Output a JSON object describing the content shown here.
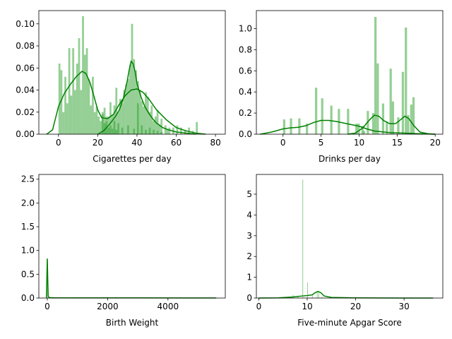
{
  "chart_data": [
    {
      "type": "histogram+kde",
      "xlabel": "Cigarettes per day",
      "xlim": [
        -10,
        85
      ],
      "ylim": [
        0,
        0.112
      ],
      "xticks": [
        0,
        20,
        40,
        60,
        80
      ],
      "yticks": [
        0.0,
        0.02,
        0.04,
        0.06,
        0.08,
        0.1
      ],
      "ytick_labels": [
        "0.00",
        "0.02",
        "0.04",
        "0.06",
        "0.08",
        "0.10"
      ],
      "bar_color": "#2ca02c",
      "line_color": "#008000",
      "series": [
        {
          "bins": [
            {
              "x": 0,
              "w": 1,
              "v": 0.064
            },
            {
              "x": 1,
              "w": 1,
              "v": 0.058
            },
            {
              "x": 2,
              "w": 1,
              "v": 0.02
            },
            {
              "x": 3,
              "w": 1,
              "v": 0.052
            },
            {
              "x": 4,
              "w": 1,
              "v": 0.028
            },
            {
              "x": 5,
              "w": 1,
              "v": 0.078
            },
            {
              "x": 6,
              "w": 1,
              "v": 0.035
            },
            {
              "x": 7,
              "w": 1,
              "v": 0.078
            },
            {
              "x": 8,
              "w": 1,
              "v": 0.04
            },
            {
              "x": 9,
              "w": 1,
              "v": 0.064
            },
            {
              "x": 10,
              "w": 1,
              "v": 0.087
            },
            {
              "x": 11,
              "w": 1,
              "v": 0.04
            },
            {
              "x": 12,
              "w": 1,
              "v": 0.107
            },
            {
              "x": 13,
              "w": 1,
              "v": 0.072
            },
            {
              "x": 14,
              "w": 1,
              "v": 0.078
            },
            {
              "x": 15,
              "w": 1,
              "v": 0.05
            },
            {
              "x": 16,
              "w": 1,
              "v": 0.026
            },
            {
              "x": 17,
              "w": 1,
              "v": 0.052
            },
            {
              "x": 18,
              "w": 1,
              "v": 0.02
            },
            {
              "x": 19,
              "w": 1,
              "v": 0.025
            },
            {
              "x": 20,
              "w": 1,
              "v": 0.016
            },
            {
              "x": 21,
              "w": 1,
              "v": 0.012
            },
            {
              "x": 22,
              "w": 1,
              "v": 0.018
            },
            {
              "x": 23,
              "w": 1,
              "v": 0.01
            },
            {
              "x": 24,
              "w": 1,
              "v": 0.016
            },
            {
              "x": 25,
              "w": 1,
              "v": 0.006
            },
            {
              "x": 26,
              "w": 1,
              "v": 0.008
            },
            {
              "x": 27,
              "w": 1,
              "v": 0.005
            },
            {
              "x": 28,
              "w": 1,
              "v": 0.012
            },
            {
              "x": 29,
              "w": 1,
              "v": 0.004
            },
            {
              "x": 30,
              "w": 1,
              "v": 0.01
            },
            {
              "x": 32,
              "w": 1,
              "v": 0.006
            },
            {
              "x": 35,
              "w": 1,
              "v": 0.008
            },
            {
              "x": 38,
              "w": 1,
              "v": 0.005
            },
            {
              "x": 40,
              "w": 1,
              "v": 0.028
            },
            {
              "x": 42,
              "w": 1,
              "v": 0.008
            },
            {
              "x": 44,
              "w": 1,
              "v": 0.004
            },
            {
              "x": 46,
              "w": 1,
              "v": 0.006
            },
            {
              "x": 48,
              "w": 1,
              "v": 0.004
            },
            {
              "x": 50,
              "w": 1,
              "v": 0.003
            },
            {
              "x": 52,
              "w": 1,
              "v": 0.002
            },
            {
              "x": 55,
              "w": 1,
              "v": 0.004
            },
            {
              "x": 58,
              "w": 1,
              "v": 0.006
            },
            {
              "x": 60,
              "w": 1,
              "v": 0.008
            },
            {
              "x": 62,
              "w": 1,
              "v": 0.006
            },
            {
              "x": 64,
              "w": 1,
              "v": 0.004
            },
            {
              "x": 66,
              "w": 1,
              "v": 0.006
            },
            {
              "x": 68,
              "w": 1,
              "v": 0.003
            },
            {
              "x": 70,
              "w": 1,
              "v": 0.011
            }
          ],
          "kde_x": [
            -6,
            -3,
            0,
            3,
            6,
            9,
            12,
            14,
            16,
            18,
            20,
            22,
            25,
            28,
            31,
            34,
            37,
            40,
            43,
            46,
            50,
            55,
            60,
            65,
            70,
            75
          ],
          "kde_y": [
            0.0,
            0.004,
            0.025,
            0.037,
            0.045,
            0.052,
            0.057,
            0.055,
            0.047,
            0.035,
            0.022,
            0.015,
            0.014,
            0.018,
            0.027,
            0.035,
            0.04,
            0.041,
            0.038,
            0.032,
            0.022,
            0.013,
            0.006,
            0.003,
            0.001,
            0.0
          ]
        },
        {
          "bins": [
            {
              "x": 22,
              "w": 1,
              "v": 0.02
            },
            {
              "x": 23,
              "w": 1,
              "v": 0.024
            },
            {
              "x": 24,
              "w": 1,
              "v": 0.012
            },
            {
              "x": 25,
              "w": 1,
              "v": 0.016
            },
            {
              "x": 26,
              "w": 1,
              "v": 0.029
            },
            {
              "x": 27,
              "w": 1,
              "v": 0.018
            },
            {
              "x": 28,
              "w": 1,
              "v": 0.026
            },
            {
              "x": 29,
              "w": 1,
              "v": 0.042
            },
            {
              "x": 30,
              "w": 1,
              "v": 0.02
            },
            {
              "x": 31,
              "w": 1,
              "v": 0.032
            },
            {
              "x": 32,
              "w": 1,
              "v": 0.028
            },
            {
              "x": 33,
              "w": 1,
              "v": 0.04
            },
            {
              "x": 34,
              "w": 1,
              "v": 0.045
            },
            {
              "x": 35,
              "w": 1,
              "v": 0.05
            },
            {
              "x": 36,
              "w": 1,
              "v": 0.063
            },
            {
              "x": 37,
              "w": 1,
              "v": 0.1
            },
            {
              "x": 38,
              "w": 1,
              "v": 0.068
            },
            {
              "x": 39,
              "w": 1,
              "v": 0.058
            },
            {
              "x": 40,
              "w": 1,
              "v": 0.048
            },
            {
              "x": 41,
              "w": 1,
              "v": 0.04
            },
            {
              "x": 42,
              "w": 1,
              "v": 0.03
            },
            {
              "x": 43,
              "w": 1,
              "v": 0.025
            },
            {
              "x": 44,
              "w": 1,
              "v": 0.038
            },
            {
              "x": 45,
              "w": 1,
              "v": 0.034
            },
            {
              "x": 46,
              "w": 1,
              "v": 0.02
            },
            {
              "x": 47,
              "w": 1,
              "v": 0.026
            },
            {
              "x": 48,
              "w": 1,
              "v": 0.012
            },
            {
              "x": 49,
              "w": 1,
              "v": 0.016
            },
            {
              "x": 50,
              "w": 1,
              "v": 0.022
            },
            {
              "x": 51,
              "w": 1,
              "v": 0.009
            },
            {
              "x": 52,
              "w": 1,
              "v": 0.014
            },
            {
              "x": 54,
              "w": 1,
              "v": 0.008
            },
            {
              "x": 56,
              "w": 1,
              "v": 0.006
            }
          ],
          "kde_x": [
            20,
            23,
            26,
            29,
            31,
            33,
            35,
            36,
            37,
            38,
            39,
            40,
            42,
            44,
            46,
            48,
            50,
            53,
            56,
            60,
            65,
            70
          ],
          "kde_y": [
            0.0,
            0.003,
            0.009,
            0.016,
            0.022,
            0.032,
            0.048,
            0.058,
            0.066,
            0.064,
            0.057,
            0.046,
            0.034,
            0.025,
            0.019,
            0.014,
            0.01,
            0.006,
            0.004,
            0.002,
            0.001,
            0.0
          ]
        }
      ]
    },
    {
      "type": "histogram+kde",
      "xlabel": "Drinks per day",
      "xlim": [
        -3.5,
        21
      ],
      "ylim": [
        0,
        1.17
      ],
      "xticks": [
        0,
        5,
        10,
        15,
        20
      ],
      "yticks": [
        0.0,
        0.2,
        0.4,
        0.6,
        0.8,
        1.0
      ],
      "ytick_labels": [
        "0.0",
        "0.2",
        "0.4",
        "0.6",
        "0.8",
        "1.0"
      ],
      "bar_color": "#2ca02c",
      "line_color": "#008000",
      "series": [
        {
          "bins": [
            {
              "x": 0.0,
              "w": 0.3,
              "v": 0.14
            },
            {
              "x": 0.9,
              "w": 0.3,
              "v": 0.15
            },
            {
              "x": 2.0,
              "w": 0.3,
              "v": 0.15
            },
            {
              "x": 3.0,
              "w": 0.3,
              "v": 0.1
            },
            {
              "x": 4.2,
              "w": 0.3,
              "v": 0.44
            },
            {
              "x": 5.0,
              "w": 0.3,
              "v": 0.34
            },
            {
              "x": 6.2,
              "w": 0.3,
              "v": 0.27
            },
            {
              "x": 7.2,
              "w": 0.3,
              "v": 0.24
            },
            {
              "x": 8.4,
              "w": 0.3,
              "v": 0.24
            },
            {
              "x": 9.5,
              "w": 0.3,
              "v": 0.1
            },
            {
              "x": 10.5,
              "w": 0.3,
              "v": 0.03
            }
          ],
          "kde_x": [
            -3,
            -1.5,
            0,
            1,
            2,
            3,
            4,
            5,
            6,
            7,
            8,
            9,
            10,
            11,
            12,
            14,
            16,
            18,
            20
          ],
          "kde_y": [
            0.0,
            0.02,
            0.05,
            0.06,
            0.065,
            0.08,
            0.11,
            0.13,
            0.13,
            0.12,
            0.105,
            0.09,
            0.075,
            0.05,
            0.03,
            0.015,
            0.01,
            0.004,
            0.0
          ]
        },
        {
          "bins": [
            {
              "x": 9.8,
              "w": 0.3,
              "v": 0.1
            },
            {
              "x": 10.3,
              "w": 0.3,
              "v": 0.08
            },
            {
              "x": 11.0,
              "w": 0.3,
              "v": 0.22
            },
            {
              "x": 11.7,
              "w": 0.3,
              "v": 0.2
            },
            {
              "x": 12.0,
              "w": 0.3,
              "v": 1.11
            },
            {
              "x": 12.3,
              "w": 0.3,
              "v": 0.67
            },
            {
              "x": 13.0,
              "w": 0.3,
              "v": 0.29
            },
            {
              "x": 13.5,
              "w": 0.3,
              "v": 0.12
            },
            {
              "x": 14.0,
              "w": 0.3,
              "v": 0.62
            },
            {
              "x": 14.3,
              "w": 0.3,
              "v": 0.31
            },
            {
              "x": 15.0,
              "w": 0.3,
              "v": 0.16
            },
            {
              "x": 15.6,
              "w": 0.3,
              "v": 0.59
            },
            {
              "x": 16.0,
              "w": 0.3,
              "v": 1.01
            },
            {
              "x": 16.3,
              "w": 0.3,
              "v": 0.18
            },
            {
              "x": 16.7,
              "w": 0.3,
              "v": 0.28
            },
            {
              "x": 17.0,
              "w": 0.3,
              "v": 0.35
            }
          ],
          "kde_x": [
            8.5,
            9.5,
            10.5,
            11.3,
            12.0,
            12.6,
            13.2,
            14.0,
            14.8,
            15.5,
            16.0,
            16.5,
            17.2,
            18.0,
            19.0,
            20.0
          ],
          "kde_y": [
            0.0,
            0.01,
            0.06,
            0.13,
            0.18,
            0.17,
            0.13,
            0.1,
            0.1,
            0.14,
            0.17,
            0.15,
            0.08,
            0.02,
            0.005,
            0.0
          ]
        }
      ]
    },
    {
      "type": "histogram+kde",
      "xlabel": "Birth Weight",
      "xlim": [
        -280,
        5900
      ],
      "ylim": [
        0,
        2.6
      ],
      "xticks": [
        0,
        2000,
        4000
      ],
      "yticks": [
        0.0,
        0.5,
        1.0,
        1.5,
        2.0,
        2.5
      ],
      "ytick_labels": [
        "0.0",
        "0.5",
        "1.0",
        "1.5",
        "2.0",
        "2.5"
      ],
      "bar_color": "#2ca02c",
      "line_color": "#008000",
      "series": [
        {
          "bins": [
            {
              "x": 0,
              "w": 20,
              "v": 0.8
            }
          ],
          "kde_x": [
            -30,
            -15,
            0,
            15,
            30,
            60,
            200,
            1000,
            3000,
            5600
          ],
          "kde_y": [
            0.0,
            0.4,
            0.83,
            0.4,
            0.04,
            0.01,
            0.005,
            0.004,
            0.003,
            0.002
          ]
        }
      ]
    },
    {
      "type": "histogram+kde",
      "xlabel": "Five-minute Apgar Score",
      "xlim": [
        -0.5,
        38
      ],
      "ylim": [
        0,
        5.95
      ],
      "xticks": [
        0,
        10,
        20,
        30
      ],
      "yticks": [
        0,
        1,
        2,
        3,
        4,
        5
      ],
      "ytick_labels": [
        "0",
        "1",
        "2",
        "3",
        "4",
        "5"
      ],
      "bar_color": "#2ca02c",
      "line_color": "#008000",
      "series": [
        {
          "bins": [
            {
              "x": 7.0,
              "w": 0.15,
              "v": 0.15
            },
            {
              "x": 8.0,
              "w": 0.15,
              "v": 0.12
            },
            {
              "x": 9.0,
              "w": 0.15,
              "v": 5.7
            },
            {
              "x": 10.0,
              "w": 0.15,
              "v": 0.75
            },
            {
              "x": 11.0,
              "w": 0.15,
              "v": 0.2
            },
            {
              "x": 12.0,
              "w": 0.15,
              "v": 0.32
            },
            {
              "x": 12.3,
              "w": 0.15,
              "v": 0.28
            },
            {
              "x": 13.0,
              "w": 0.15,
              "v": 0.08
            }
          ],
          "kde_x": [
            0,
            4,
            7,
            9,
            10,
            11,
            11.6,
            12.2,
            12.8,
            13.5,
            15,
            20,
            30,
            36
          ],
          "kde_y": [
            0.0,
            0.01,
            0.05,
            0.1,
            0.12,
            0.15,
            0.25,
            0.32,
            0.26,
            0.1,
            0.03,
            0.01,
            0.0,
            0.0
          ]
        }
      ]
    }
  ]
}
